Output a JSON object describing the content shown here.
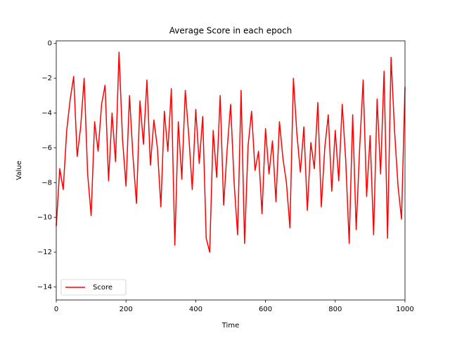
{
  "chart_data": {
    "type": "line",
    "title": "Average Score in each epoch",
    "x_label": "Time",
    "y_label": "Value",
    "x": [
      0,
      10,
      20,
      30,
      40,
      50,
      60,
      70,
      80,
      90,
      100,
      110,
      120,
      130,
      140,
      150,
      160,
      170,
      180,
      190,
      200,
      210,
      220,
      230,
      240,
      250,
      260,
      270,
      280,
      290,
      300,
      310,
      320,
      330,
      340,
      350,
      360,
      370,
      380,
      390,
      400,
      410,
      420,
      430,
      440,
      450,
      460,
      470,
      480,
      490,
      500,
      510,
      520,
      530,
      540,
      550,
      560,
      570,
      580,
      590,
      600,
      610,
      620,
      630,
      640,
      650,
      660,
      670,
      680,
      690,
      700,
      710,
      720,
      730,
      740,
      750,
      760,
      770,
      780,
      790,
      800,
      810,
      820,
      830,
      840,
      850,
      860,
      870,
      880,
      890,
      900,
      910,
      920,
      930,
      940,
      950,
      960,
      970,
      980,
      990,
      1000
    ],
    "series": [
      {
        "name": "Score",
        "color": "#ff0000",
        "values": [
          -10.5,
          -7.2,
          -8.4,
          -5.0,
          -3.2,
          -1.9,
          -6.5,
          -4.8,
          -2.0,
          -7.5,
          -9.9,
          -4.5,
          -6.2,
          -3.5,
          -2.4,
          -7.9,
          -4.0,
          -6.8,
          -0.5,
          -5.5,
          -8.2,
          -3.0,
          -6.5,
          -9.2,
          -3.3,
          -5.8,
          -2.1,
          -7.0,
          -4.4,
          -6.0,
          -9.4,
          -3.9,
          -6.2,
          -2.6,
          -11.6,
          -4.5,
          -7.8,
          -2.7,
          -5.3,
          -8.4,
          -3.8,
          -6.9,
          -4.2,
          -11.2,
          -12.0,
          -5.0,
          -7.7,
          -3.0,
          -9.3,
          -6.1,
          -3.5,
          -8.0,
          -11.0,
          -2.7,
          -11.5,
          -5.9,
          -3.9,
          -7.3,
          -6.2,
          -9.8,
          -4.9,
          -7.5,
          -5.6,
          -9.1,
          -4.5,
          -6.6,
          -8.0,
          -10.6,
          -2.0,
          -5.2,
          -7.4,
          -4.8,
          -9.6,
          -5.7,
          -7.2,
          -3.4,
          -9.4,
          -6.0,
          -4.1,
          -8.5,
          -5.0,
          -7.9,
          -3.5,
          -6.7,
          -11.5,
          -4.1,
          -10.7,
          -6.0,
          -2.1,
          -8.8,
          -5.3,
          -11.0,
          -3.2,
          -7.5,
          -1.6,
          -11.2,
          -0.8,
          -5.0,
          -8.2,
          -10.1,
          -2.5
        ]
      }
    ],
    "xlim": [
      0,
      1000
    ],
    "ylim": [
      -14.75,
      0.15
    ],
    "xticks": [
      0,
      200,
      400,
      600,
      800,
      1000
    ],
    "yticks": [
      0,
      {
        "value": -2,
        "label": "−2"
      },
      {
        "value": -4,
        "label": "−4"
      },
      {
        "value": -6,
        "label": "−6"
      },
      {
        "value": -8,
        "label": "−8"
      },
      {
        "value": -10,
        "label": "−10"
      },
      {
        "value": -12,
        "label": "−12"
      },
      {
        "value": -14,
        "label": "−14"
      }
    ],
    "legend": "lower left",
    "grid": false
  }
}
